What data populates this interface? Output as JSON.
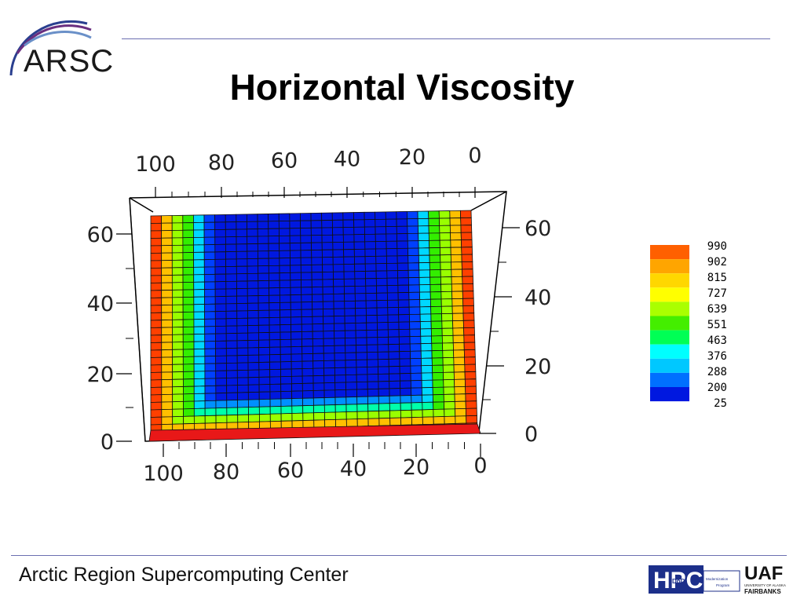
{
  "header": {
    "logo_text": "ARSC",
    "title": "Horizontal Viscosity"
  },
  "plot": {
    "top_axis_ticks": [
      "100",
      "80",
      "60",
      "40",
      "20",
      "0"
    ],
    "bottom_axis_ticks": [
      "100",
      "80",
      "60",
      "40",
      "20",
      "0"
    ],
    "left_axis_ticks": [
      "60",
      "40",
      "20",
      "0"
    ],
    "right_axis_ticks": [
      "60",
      "40",
      "20",
      "0"
    ],
    "legend": {
      "labels": [
        "990",
        "902",
        "815",
        "727",
        "639",
        "551",
        "463",
        "376",
        "288",
        "200",
        "25"
      ],
      "colors": [
        "#ff6000",
        "#ffa500",
        "#ffd700",
        "#ffff00",
        "#aaff00",
        "#44ee00",
        "#00ff55",
        "#00ffff",
        "#00c8ff",
        "#0070ff",
        "#0018e0"
      ]
    }
  },
  "footer": {
    "text": "Arctic Region Supercomputing Center",
    "hpc_logo": "HPC",
    "hpc_small": "Modernization Program",
    "hpc_dod": "DoD",
    "uaf_logo": "UAF",
    "uaf_sub1": "UNIVERSITY OF ALASKA",
    "uaf_sub2": "FAIRBANKS"
  }
}
